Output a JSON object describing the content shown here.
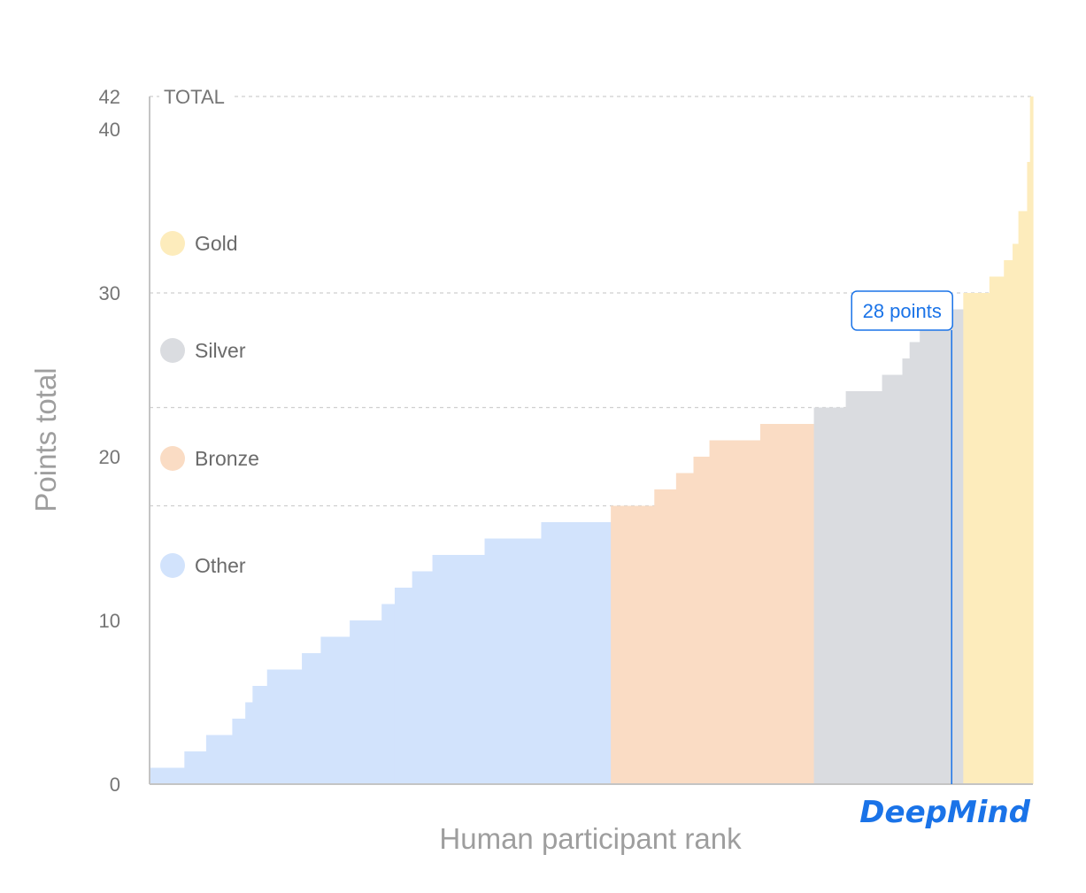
{
  "chart_data": {
    "type": "area",
    "title": "",
    "xlabel": "Human participant rank",
    "ylabel": "Points total",
    "ylim": [
      0,
      42
    ],
    "yticks": [
      0,
      10,
      20,
      30,
      40,
      42
    ],
    "grid": true,
    "threshold_lines": [
      17,
      23,
      30,
      42
    ],
    "top_line_label": "TOTAL",
    "participant_count": 609,
    "steps": [
      {
        "x": 0,
        "y": 1,
        "tier": "other"
      },
      {
        "x": 24,
        "y": 2,
        "tier": "other"
      },
      {
        "x": 39,
        "y": 3,
        "tier": "other"
      },
      {
        "x": 57,
        "y": 4,
        "tier": "other"
      },
      {
        "x": 66,
        "y": 5,
        "tier": "other"
      },
      {
        "x": 71,
        "y": 6,
        "tier": "other"
      },
      {
        "x": 81,
        "y": 7,
        "tier": "other"
      },
      {
        "x": 105,
        "y": 8,
        "tier": "other"
      },
      {
        "x": 118,
        "y": 9,
        "tier": "other"
      },
      {
        "x": 138,
        "y": 10,
        "tier": "other"
      },
      {
        "x": 160,
        "y": 11,
        "tier": "other"
      },
      {
        "x": 169,
        "y": 12,
        "tier": "other"
      },
      {
        "x": 181,
        "y": 13,
        "tier": "other"
      },
      {
        "x": 195,
        "y": 14,
        "tier": "other"
      },
      {
        "x": 231,
        "y": 15,
        "tier": "other"
      },
      {
        "x": 270,
        "y": 16,
        "tier": "other"
      },
      {
        "x": 318,
        "y": 17,
        "tier": "bronze"
      },
      {
        "x": 348,
        "y": 18,
        "tier": "bronze"
      },
      {
        "x": 363,
        "y": 19,
        "tier": "bronze"
      },
      {
        "x": 375,
        "y": 20,
        "tier": "bronze"
      },
      {
        "x": 386,
        "y": 21,
        "tier": "bronze"
      },
      {
        "x": 421,
        "y": 22,
        "tier": "bronze"
      },
      {
        "x": 458,
        "y": 23,
        "tier": "silver"
      },
      {
        "x": 480,
        "y": 24,
        "tier": "silver"
      },
      {
        "x": 505,
        "y": 25,
        "tier": "silver"
      },
      {
        "x": 519,
        "y": 26,
        "tier": "silver"
      },
      {
        "x": 524,
        "y": 27,
        "tier": "silver"
      },
      {
        "x": 531,
        "y": 28,
        "tier": "silver"
      },
      {
        "x": 554,
        "y": 29,
        "tier": "silver"
      },
      {
        "x": 561,
        "y": 30,
        "tier": "gold"
      },
      {
        "x": 579,
        "y": 31,
        "tier": "gold"
      },
      {
        "x": 589,
        "y": 32,
        "tier": "gold"
      },
      {
        "x": 595,
        "y": 33,
        "tier": "gold"
      },
      {
        "x": 599,
        "y": 35,
        "tier": "gold"
      },
      {
        "x": 605,
        "y": 38,
        "tier": "gold"
      },
      {
        "x": 607,
        "y": 42,
        "tier": "gold"
      }
    ],
    "legend": {
      "placement": "left",
      "items": [
        {
          "name": "Gold",
          "color": "#fdecbc"
        },
        {
          "name": "Silver",
          "color": "#dadce0"
        },
        {
          "name": "Bronze",
          "color": "#fadcc4"
        },
        {
          "name": "Other",
          "color": "#d2e3fc"
        }
      ]
    },
    "annotation": {
      "label": "28 points",
      "x": 553,
      "y": 28,
      "color": "#1a73e8"
    },
    "brand": "DeepMind"
  }
}
